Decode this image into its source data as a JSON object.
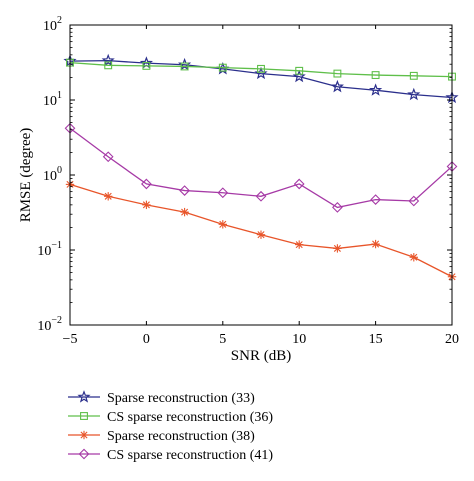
{
  "chart_data": {
    "type": "line",
    "xlabel": "SNR (dB)",
    "ylabel": "RMSE (degree)",
    "xlim": [
      -5,
      20
    ],
    "ylim": [
      0.01,
      100
    ],
    "yscale": "log",
    "grid": false,
    "legend_position": "below",
    "x_ticks": [
      {
        "value": -5,
        "label": "−5"
      },
      {
        "value": 0,
        "label": "0"
      },
      {
        "value": 5,
        "label": "5"
      },
      {
        "value": 10,
        "label": "10"
      },
      {
        "value": 15,
        "label": "15"
      },
      {
        "value": 20,
        "label": "20"
      }
    ],
    "y_ticks": [
      {
        "value": 100,
        "base": "10",
        "exp": "2"
      },
      {
        "value": 10,
        "base": "10",
        "exp": "1"
      },
      {
        "value": 1,
        "base": "10",
        "exp": "0"
      },
      {
        "value": 0.1,
        "base": "10",
        "exp": "−1"
      },
      {
        "value": 0.01,
        "base": "10",
        "exp": "−2"
      }
    ],
    "x": [
      -5,
      -2.5,
      0,
      2.5,
      5,
      7.5,
      10,
      12.5,
      15,
      17.5,
      20
    ],
    "series": [
      {
        "name": "Sparse reconstruction (33)",
        "color": "#2b2f8c",
        "marker": "star",
        "values": [
          33,
          33.5,
          31,
          29.5,
          26,
          22.5,
          20.5,
          15,
          13.5,
          11.8,
          10.8
        ]
      },
      {
        "name": "CS sparse reconstruction (36)",
        "color": "#5fbf4a",
        "marker": "square",
        "values": [
          31.5,
          29,
          28.5,
          28,
          27,
          26,
          24.5,
          22.5,
          21.5,
          21,
          20.5
        ]
      },
      {
        "name": "Sparse reconstruction (38)",
        "color": "#e8552a",
        "marker": "asterisk",
        "values": [
          0.75,
          0.52,
          0.4,
          0.32,
          0.22,
          0.16,
          0.118,
          0.105,
          0.12,
          0.08,
          0.044
        ]
      },
      {
        "name": "CS sparse reconstruction (41)",
        "color": "#a63aa6",
        "marker": "diamond",
        "values": [
          4.2,
          1.75,
          0.76,
          0.62,
          0.58,
          0.52,
          0.76,
          0.37,
          0.47,
          0.45,
          1.3
        ]
      }
    ]
  }
}
